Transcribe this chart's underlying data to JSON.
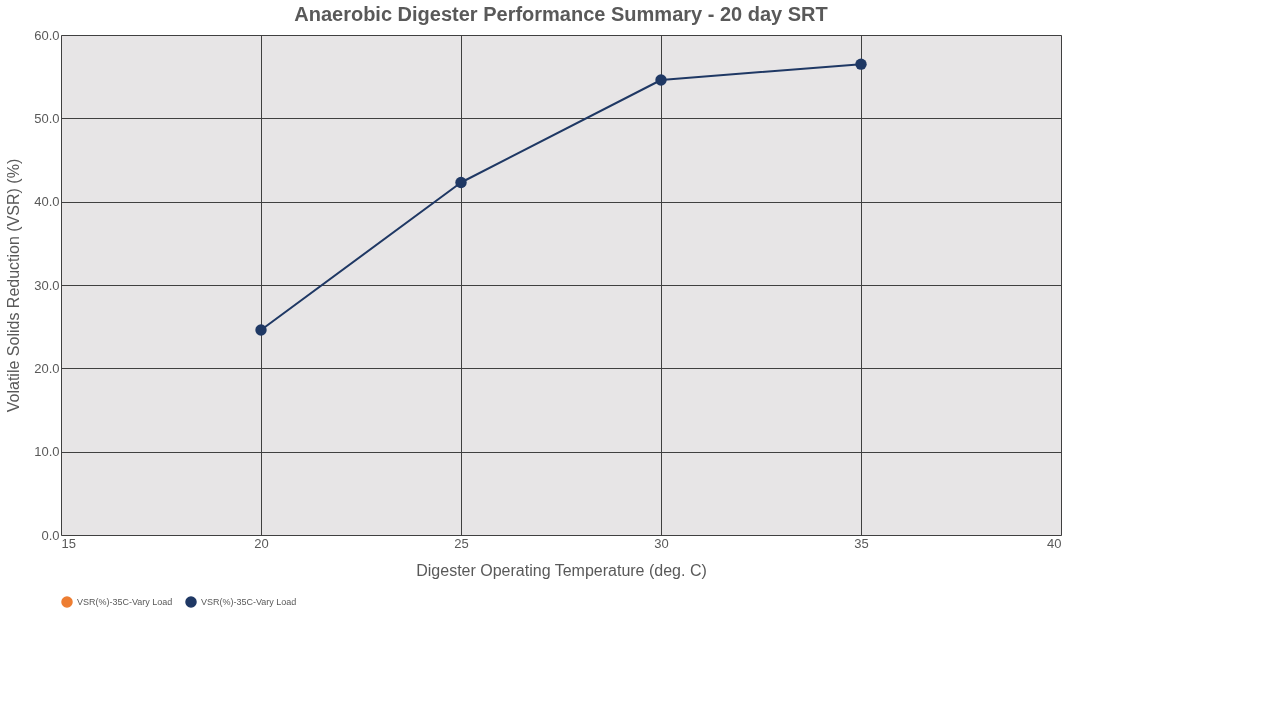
{
  "chart_data": {
    "type": "line",
    "title": "Anaerobic Digester Performance Summary - 20 day SRT",
    "xlabel": "Digester Operating Temperature (deg. C)",
    "ylabel": "Volatile Solids Reduction (VSR) (%)",
    "x": [
      20,
      25,
      30,
      35
    ],
    "series": [
      {
        "name": "VSR(%)-35C-Vary Load",
        "color": "#ed7d31",
        "values": [
          null,
          null,
          null,
          null
        ]
      },
      {
        "name": "VSR(%)-35C-Vary Load",
        "color": "#1f3864",
        "values": [
          24.6,
          42.3,
          54.6,
          56.5
        ]
      }
    ],
    "xlim": [
      15,
      40
    ],
    "xticks": [
      15,
      20,
      25,
      30,
      35,
      40
    ],
    "ylim": [
      0,
      60
    ],
    "yticks": [
      {
        "value": 0,
        "label": "0.0"
      },
      {
        "value": 10,
        "label": "10.0"
      },
      {
        "value": 20,
        "label": "20.0"
      },
      {
        "value": 30,
        "label": "30.0"
      },
      {
        "value": 40,
        "label": "40.0"
      },
      {
        "value": 50,
        "label": "50.0"
      },
      {
        "value": 60,
        "label": "60.0"
      }
    ],
    "grid": true,
    "legend": "bottom",
    "marker": "circle",
    "line_style": "solid"
  }
}
